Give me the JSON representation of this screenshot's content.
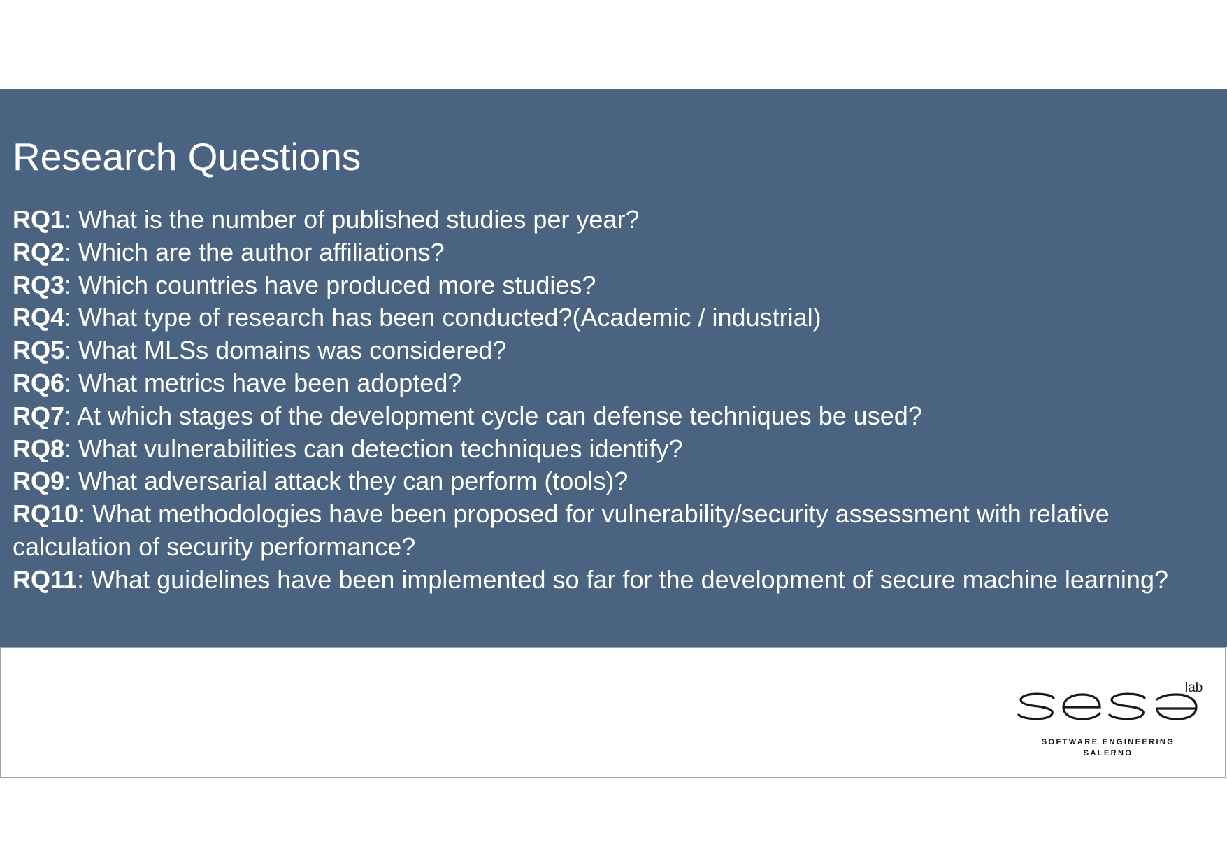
{
  "slide": {
    "title": "Research Questions",
    "colors": {
      "band": "#4a6380",
      "text": "#ffffff",
      "logo": "#1a1a1a"
    }
  },
  "questions": [
    {
      "id": "RQ1",
      "text": ": What is the number of published studies per year?"
    },
    {
      "id": "RQ2",
      "text": ": Which are the author affiliations?"
    },
    {
      "id": "RQ3",
      "text": ": Which countries have produced more studies?"
    },
    {
      "id": "RQ4",
      "text": ": What type of research has been conducted?(Academic / industrial)"
    },
    {
      "id": "RQ5",
      "text": ": What MLSs domains  was considered?"
    },
    {
      "id": "RQ6",
      "text": ": What metrics have been adopted?"
    },
    {
      "id": "RQ7",
      "text": ": At which stages of the development cycle can defense techniques be used?"
    },
    {
      "id": "RQ8",
      "text": ": What vulnerabilities can detection techniques identify?"
    },
    {
      "id": "RQ9",
      "text": ": What adversarial attack they can perform (tools)?"
    },
    {
      "id": "RQ10",
      "text": ": What methodologies have been proposed for vulnerability/security assessment with relative calculation of security performance?"
    },
    {
      "id": "RQ11",
      "text": ": What guidelines have been implemented so far for the development of secure machine learning?"
    }
  ],
  "logo": {
    "wordmark": "sesa",
    "superscript": "lab",
    "line1": "SOFTWARE ENGINEERING",
    "line2": "SALERNO"
  }
}
